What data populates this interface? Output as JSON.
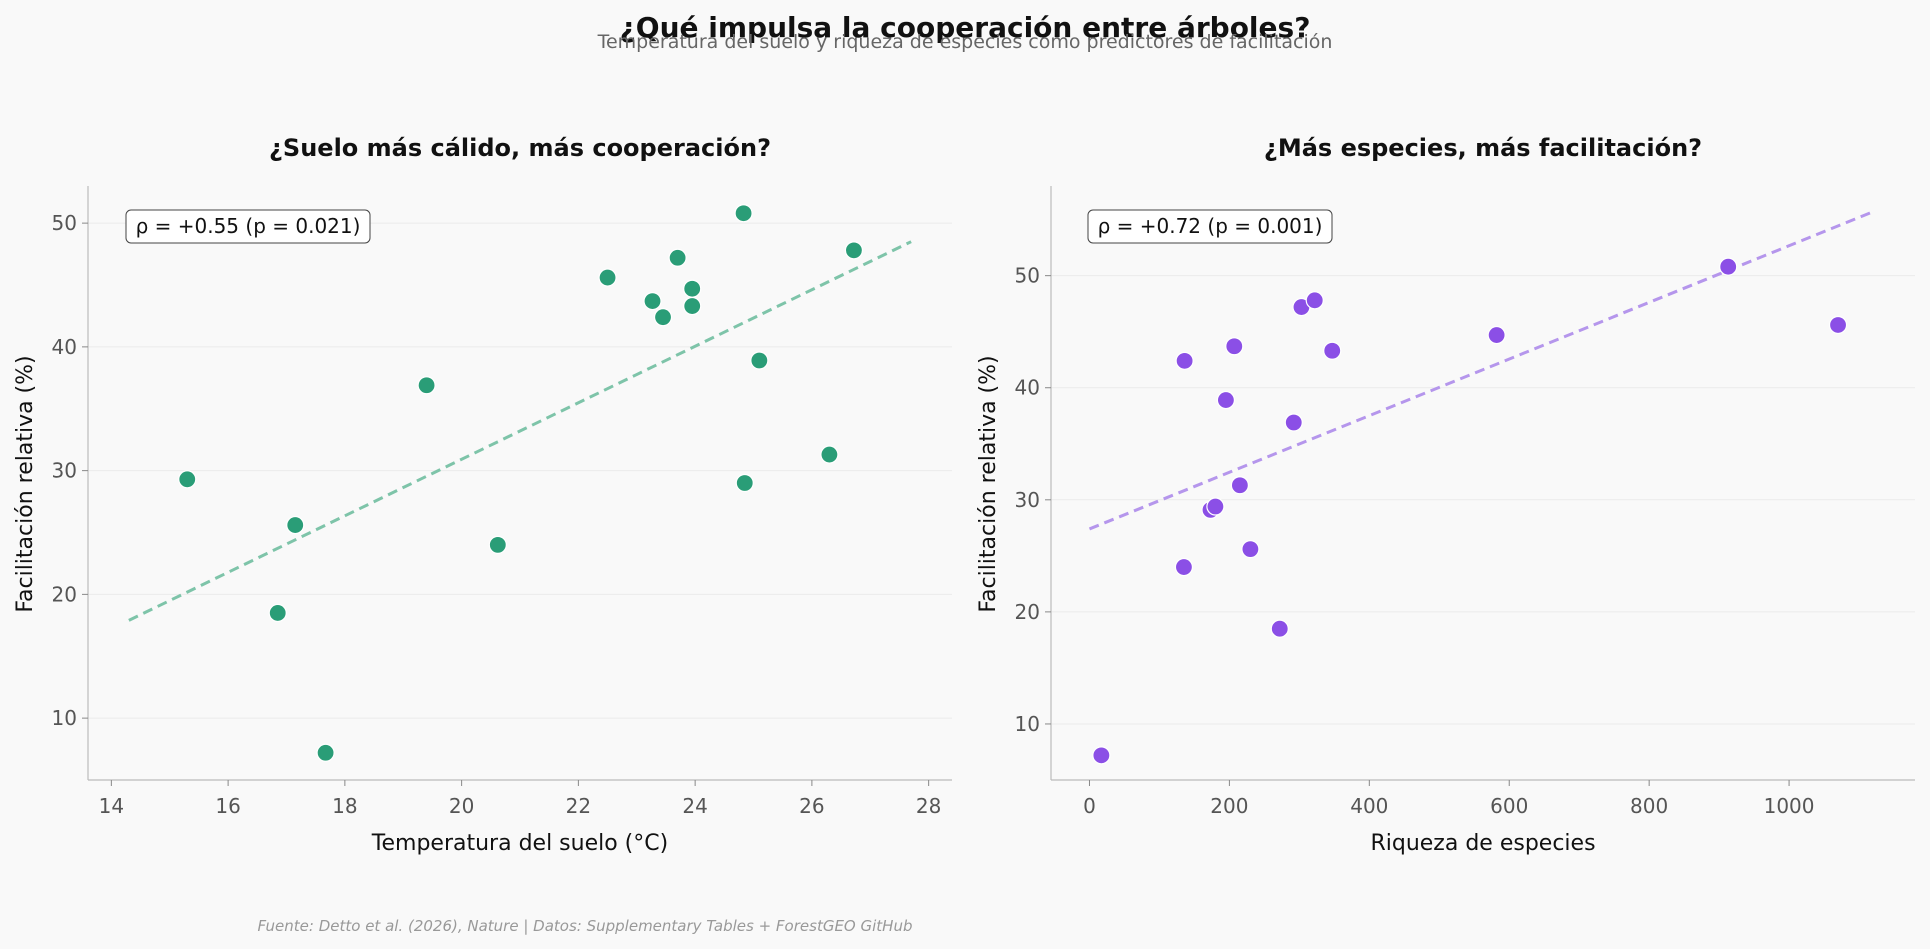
{
  "figure": {
    "title": "¿Qué impulsa la cooperación entre árboles?",
    "subtitle": "Temperatura del suelo y riqueza de especies como predictores de facilitación",
    "source": "Fuente: Detto et al. (2026), Nature | Datos: Supplementary Tables + ForestGEO GitHub"
  },
  "chart_data": [
    {
      "type": "scatter",
      "title": "¿Suelo más cálido, más cooperación?",
      "xlabel": "Temperatura del suelo (°C)",
      "ylabel": "Facilitación relativa (%)",
      "xlim": [
        13.6,
        28.4
      ],
      "ylim": [
        5,
        53
      ],
      "xticks": [
        14,
        16,
        18,
        20,
        22,
        24,
        26,
        28
      ],
      "yticks": [
        10,
        20,
        30,
        40,
        50
      ],
      "color": "#2a9d77",
      "trend_color": "#7ec4a9",
      "annotation": "ρ = +0.55 (p = 0.021)",
      "points": [
        {
          "x": 15.3,
          "y": 29.3
        },
        {
          "x": 16.85,
          "y": 18.5
        },
        {
          "x": 17.15,
          "y": 25.6
        },
        {
          "x": 17.67,
          "y": 7.2
        },
        {
          "x": 19.4,
          "y": 36.9
        },
        {
          "x": 20.62,
          "y": 24.0
        },
        {
          "x": 22.5,
          "y": 45.6
        },
        {
          "x": 23.27,
          "y": 43.7
        },
        {
          "x": 23.45,
          "y": 42.4
        },
        {
          "x": 23.7,
          "y": 47.2
        },
        {
          "x": 23.95,
          "y": 44.7
        },
        {
          "x": 23.95,
          "y": 43.3
        },
        {
          "x": 24.83,
          "y": 50.8
        },
        {
          "x": 24.85,
          "y": 29.0
        },
        {
          "x": 25.1,
          "y": 38.9
        },
        {
          "x": 26.3,
          "y": 31.3
        },
        {
          "x": 26.72,
          "y": 47.8
        }
      ],
      "trend": {
        "x": [
          14.3,
          27.7
        ],
        "y": [
          17.9,
          48.5
        ]
      }
    },
    {
      "type": "scatter",
      "title": "¿Más especies, más facilitación?",
      "xlabel": "Riqueza de especies",
      "ylabel": "Facilitación relativa (%)",
      "xlim": [
        -55,
        1180
      ],
      "ylim": [
        5,
        58
      ],
      "xticks": [
        0,
        200,
        400,
        600,
        800,
        1000
      ],
      "yticks": [
        10,
        20,
        30,
        40,
        50
      ],
      "color": "#8b4fe6",
      "trend_color": "#b596ec",
      "annotation": "ρ = +0.72 (p = 0.001)",
      "points": [
        {
          "x": 17,
          "y": 7.2
        },
        {
          "x": 135,
          "y": 24.0
        },
        {
          "x": 136,
          "y": 42.4
        },
        {
          "x": 173,
          "y": 29.1
        },
        {
          "x": 180,
          "y": 29.4
        },
        {
          "x": 195,
          "y": 38.9
        },
        {
          "x": 207,
          "y": 43.7
        },
        {
          "x": 215,
          "y": 31.3
        },
        {
          "x": 230,
          "y": 25.6
        },
        {
          "x": 272,
          "y": 18.5
        },
        {
          "x": 292,
          "y": 36.9
        },
        {
          "x": 303,
          "y": 47.2
        },
        {
          "x": 322,
          "y": 47.8
        },
        {
          "x": 347,
          "y": 43.3
        },
        {
          "x": 582,
          "y": 44.7
        },
        {
          "x": 913,
          "y": 50.8
        },
        {
          "x": 1070,
          "y": 45.6
        }
      ],
      "trend": {
        "x": [
          0,
          1120
        ],
        "y": [
          27.4,
          55.7
        ]
      }
    }
  ]
}
